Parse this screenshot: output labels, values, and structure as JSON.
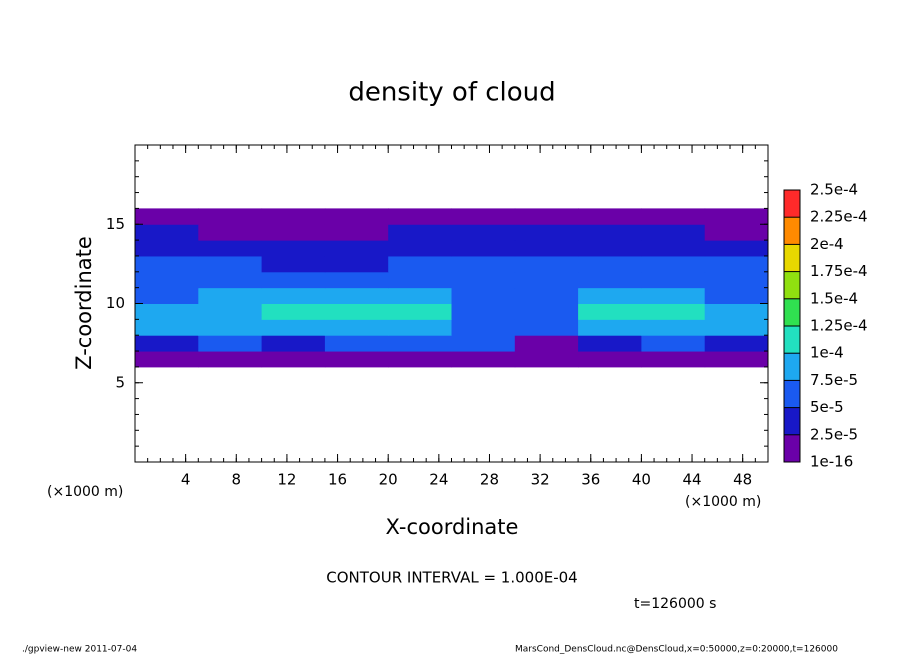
{
  "chart_data": {
    "type": "shaded-contour",
    "title": "density of cloud",
    "x_label": "X-coordinate",
    "y_label": "Z-coordinate",
    "x_unit": "(×1000 m)",
    "contour_text": "CONTOUR INTERVAL = 1.000E-04",
    "time_text": "t=126000 s",
    "footer_left": "./gpview-new  2011-07-04",
    "footer_right": "MarsCond_DensCloud.nc@DensCloud,x=0:50000,z=0:20000,t=126000",
    "xlim": [
      0,
      50
    ],
    "xticks": [
      4,
      8,
      12,
      16,
      20,
      24,
      28,
      32,
      36,
      40,
      44,
      48
    ],
    "ylim": [
      0,
      20
    ],
    "yticks": [
      5,
      10,
      15
    ],
    "x": [
      2.5,
      7.5,
      12.5,
      17.5,
      22.5,
      27.5,
      32.5,
      37.5,
      42.5,
      47.5
    ],
    "y": [
      0.5,
      1.5,
      2.5,
      3.5,
      4.5,
      5.5,
      6.5,
      7.5,
      8.5,
      9.5,
      10.5,
      11.5,
      12.5,
      13.5,
      14.5,
      15.5,
      16.5,
      17.5,
      18.5,
      19.5
    ],
    "z": [
      [
        0,
        0,
        0,
        0,
        0,
        0,
        0,
        0,
        0,
        0
      ],
      [
        0,
        0,
        0,
        0,
        0,
        0,
        0,
        0,
        0,
        0
      ],
      [
        0,
        0,
        0,
        0,
        0,
        0,
        0,
        0,
        0,
        0
      ],
      [
        0,
        0,
        0,
        0,
        0,
        0,
        0,
        0,
        0,
        0
      ],
      [
        0,
        0,
        0,
        0,
        0,
        0,
        0,
        0,
        0,
        0
      ],
      [
        0,
        0,
        0,
        0,
        0,
        0,
        0,
        0,
        0,
        0
      ],
      [
        1e-05,
        1e-05,
        1e-05,
        1e-05,
        1e-05,
        1e-05,
        1e-05,
        1e-05,
        1e-05,
        1e-05
      ],
      [
        4e-05,
        6e-05,
        4e-05,
        6e-05,
        6e-05,
        5e-05,
        2e-05,
        4e-05,
        5e-05,
        4e-05
      ],
      [
        8e-05,
        8e-05,
        9e-05,
        9e-05,
        9e-05,
        7e-05,
        6e-05,
        9e-05,
        9e-05,
        8e-05
      ],
      [
        8e-05,
        9e-05,
        0.00011,
        0.00011,
        0.00011,
        7e-05,
        6e-05,
        0.00011,
        0.00011,
        8e-05
      ],
      [
        7e-05,
        8e-05,
        8e-05,
        9e-05,
        8e-05,
        6e-05,
        6e-05,
        8e-05,
        8e-05,
        7e-05
      ],
      [
        6e-05,
        7e-05,
        7e-05,
        7e-05,
        7e-05,
        6e-05,
        6e-05,
        7e-05,
        6e-05,
        6e-05
      ],
      [
        5e-05,
        5e-05,
        4e-05,
        4e-05,
        5e-05,
        6e-05,
        6e-05,
        5e-05,
        5e-05,
        5e-05
      ],
      [
        3.5e-05,
        3e-05,
        3e-05,
        3e-05,
        3.5e-05,
        4e-05,
        4e-05,
        4e-05,
        3.5e-05,
        3e-05
      ],
      [
        2.5e-05,
        2e-05,
        2e-05,
        2e-05,
        2.5e-05,
        3e-05,
        3e-05,
        3e-05,
        2.5e-05,
        2e-05
      ],
      [
        1e-05,
        1e-05,
        1e-05,
        1e-05,
        1e-05,
        1e-05,
        1e-05,
        1e-05,
        1e-05,
        1e-05
      ],
      [
        0,
        0,
        0,
        0,
        0,
        0,
        0,
        0,
        0,
        0
      ],
      [
        0,
        0,
        0,
        0,
        0,
        0,
        0,
        0,
        0,
        0
      ],
      [
        0,
        0,
        0,
        0,
        0,
        0,
        0,
        0,
        0,
        0
      ],
      [
        0,
        0,
        0,
        0,
        0,
        0,
        0,
        0,
        0,
        0
      ]
    ],
    "levels": [
      1e-16,
      {
        "value": 2.5e-05,
        "label": "2.5e-5"
      },
      {
        "value": 5e-05,
        "label": "5e-5"
      },
      {
        "value": 7.5e-05,
        "label": "7.5e-5"
      },
      {
        "value": 0.0001,
        "label": "1e-4"
      },
      {
        "value": 0.000125,
        "label": "1.25e-4"
      },
      {
        "value": 0.00015,
        "label": "1.5e-4"
      },
      {
        "value": 0.000175,
        "label": "1.75e-4"
      },
      {
        "value": 0.0002,
        "label": "2e-4"
      },
      {
        "value": 0.000225,
        "label": "2.25e-4"
      },
      {
        "value": 0.00025,
        "label": "2.5e-4"
      }
    ],
    "colors": [
      "#6a00a8",
      "#1818c8",
      "#1a5af0",
      "#1ea8f0",
      "#22e0c0",
      "#30e050",
      "#90e010",
      "#e8d800",
      "#ff8a00",
      "#ff2a2a"
    ]
  }
}
